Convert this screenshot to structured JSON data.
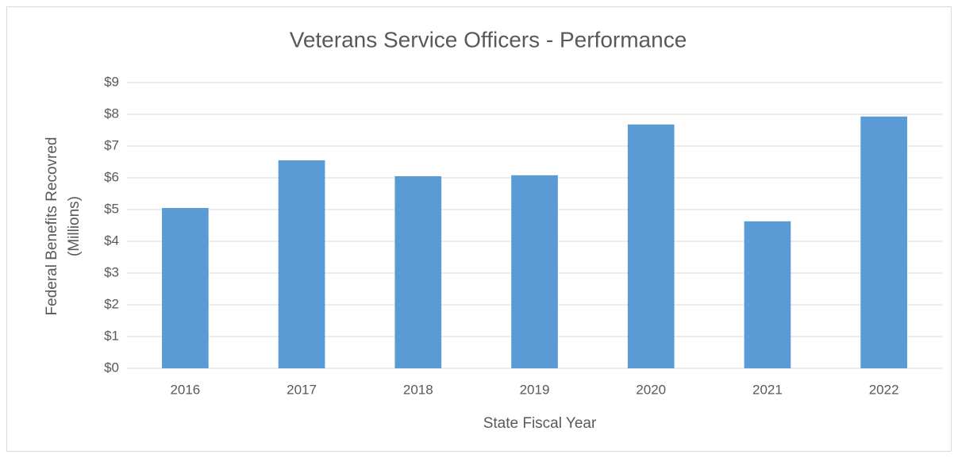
{
  "chart_data": {
    "type": "bar",
    "title": "Veterans Service Officers - Performance",
    "x_label": "State Fiscal Year",
    "y_label": [
      "Federal Benefits Recovred",
      "(Millions)"
    ],
    "categories": [
      "2016",
      "2017",
      "2018",
      "2019",
      "2020",
      "2021",
      "2022"
    ],
    "values": [
      5.05,
      6.55,
      6.05,
      6.08,
      7.68,
      4.63,
      7.93
    ],
    "color": "#5b9bd5",
    "ylim": [
      0,
      9
    ],
    "yticks": [
      {
        "value": 0,
        "label": "$0"
      },
      {
        "value": 1,
        "label": "$1"
      },
      {
        "value": 2,
        "label": "$2"
      },
      {
        "value": 3,
        "label": "$3"
      },
      {
        "value": 4,
        "label": "$4"
      },
      {
        "value": 5,
        "label": "$5"
      },
      {
        "value": 6,
        "label": "$6"
      },
      {
        "value": 7,
        "label": "$7"
      },
      {
        "value": 8,
        "label": "$8"
      },
      {
        "value": 9,
        "label": "$9"
      }
    ],
    "grid": true
  }
}
